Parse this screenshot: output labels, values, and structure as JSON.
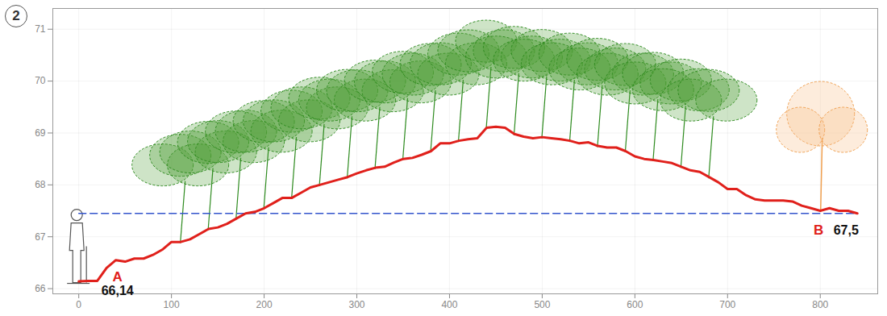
{
  "chart_data": {
    "type": "line",
    "panel_label": "2",
    "color": "#e0201b",
    "x": [
      0,
      10,
      20,
      30,
      40,
      50,
      60,
      70,
      80,
      90,
      100,
      110,
      120,
      130,
      140,
      150,
      160,
      170,
      180,
      190,
      200,
      210,
      220,
      230,
      240,
      250,
      260,
      270,
      280,
      290,
      300,
      310,
      320,
      330,
      340,
      350,
      360,
      370,
      380,
      390,
      400,
      410,
      420,
      430,
      440,
      450,
      460,
      470,
      480,
      490,
      500,
      510,
      520,
      530,
      540,
      550,
      560,
      570,
      580,
      590,
      600,
      610,
      620,
      630,
      640,
      650,
      660,
      670,
      680,
      690,
      700,
      710,
      720,
      730,
      740,
      750,
      760,
      770,
      780,
      790,
      800,
      810,
      820,
      830,
      840
    ],
    "values": [
      66.14,
      66.15,
      66.15,
      66.4,
      66.55,
      66.52,
      66.58,
      66.58,
      66.65,
      66.75,
      66.9,
      66.9,
      66.95,
      67.05,
      67.15,
      67.18,
      67.25,
      67.35,
      67.45,
      67.48,
      67.55,
      67.65,
      67.75,
      67.75,
      67.85,
      67.95,
      68.0,
      68.05,
      68.1,
      68.15,
      68.22,
      68.28,
      68.33,
      68.35,
      68.43,
      68.5,
      68.52,
      68.58,
      68.65,
      68.8,
      68.8,
      68.85,
      68.88,
      68.9,
      69.1,
      69.12,
      69.1,
      68.98,
      68.93,
      68.9,
      68.92,
      68.9,
      68.88,
      68.85,
      68.8,
      68.82,
      68.75,
      68.72,
      68.72,
      68.65,
      68.55,
      68.5,
      68.48,
      68.45,
      68.42,
      68.35,
      68.28,
      68.25,
      68.15,
      68.05,
      67.92,
      67.92,
      67.8,
      67.72,
      67.7,
      67.7,
      67.7,
      67.68,
      67.6,
      67.55,
      67.5,
      67.55,
      67.5,
      67.5,
      67.45
    ],
    "reference_line": {
      "y": 67.45,
      "color": "#3355cc",
      "line_style": "dashed"
    },
    "points": [
      {
        "name": "A",
        "label": "66,14",
        "x": 0,
        "y": 66.14
      },
      {
        "name": "B",
        "label": "67,5",
        "x": 840,
        "y": 67.5
      }
    ],
    "xlim": [
      -28,
      862
    ],
    "xticks": [
      0,
      100,
      200,
      300,
      400,
      500,
      600,
      700,
      800
    ],
    "ylim": [
      65.9,
      71.4
    ],
    "yticks": [
      66,
      67,
      68,
      69,
      70,
      71
    ],
    "grid": true
  }
}
